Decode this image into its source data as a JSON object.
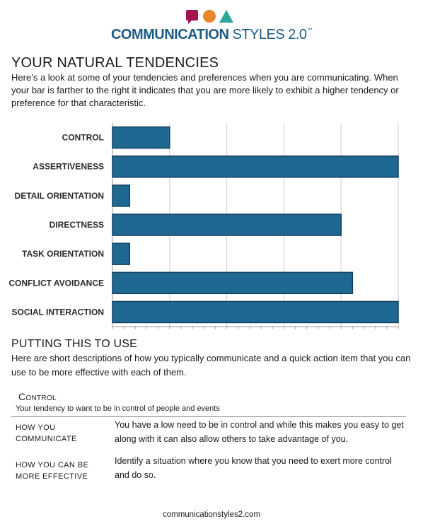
{
  "logo": {
    "brand_strong": "COMMUNICATION",
    "brand_light": " STYLES 2.0",
    "trademark": "™",
    "colors": {
      "square": "#a3154f",
      "circle": "#e8872b",
      "triangle": "#2aa89b",
      "text": "#1f5c85"
    }
  },
  "tendencies": {
    "title": "YOUR NATURAL TENDENCIES",
    "intro": "Here’s a look at some of your tendencies and preferences when you are communicating. When your bar is farther to the right it indicates that you are more likely to exhibit a higher tendency or preference for that characteristic."
  },
  "chart_data": {
    "type": "bar",
    "orientation": "horizontal",
    "categories": [
      "CONTROL",
      "ASSERTIVENESS",
      "DETAIL ORIENTATION",
      "DIRECTNESS",
      "TASK ORIENTATION",
      "CONFLICT AVOIDANCE",
      "SOCIAL INTERACTION"
    ],
    "values": [
      2,
      10,
      0.6,
      8,
      0.6,
      8.4,
      10
    ],
    "xlim": [
      0,
      10
    ],
    "grid": true,
    "major_gridlines": 5,
    "bar_color": "#1f6891",
    "bar_edge": "#0f3f5e",
    "title": "",
    "xlabel": "",
    "ylabel": ""
  },
  "putting": {
    "title": "PUTTING THIS TO USE",
    "intro": "Here are short descriptions of how you typically communicate and a quick action item that you can use to be more effective with each of them."
  },
  "control_section": {
    "title": "Control",
    "subtitle": "Your tendency to want to be in control of people and events",
    "rows": [
      {
        "label_line1": "HOW YOU",
        "label_line2": "COMMUNICATE",
        "text": "You have a low need to be in control and while this makes you easy to get along with it can also allow others to take advantage of you."
      },
      {
        "label_line1": "HOW YOU CAN BE",
        "label_line2": "MORE EFFECTIVE",
        "text": "Identify a situation where you know that you need to exert more control and do so."
      }
    ]
  },
  "footer": {
    "url": "communicationstyles2.com"
  }
}
